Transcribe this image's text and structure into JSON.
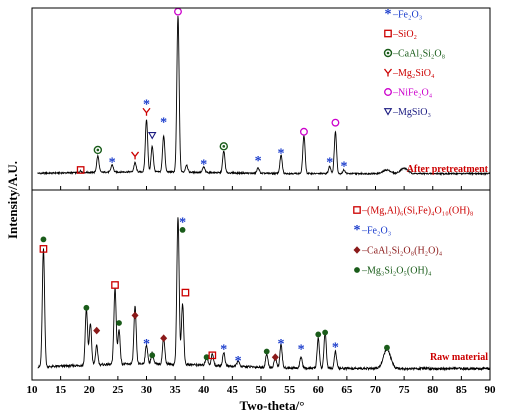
{
  "chart_data": {
    "type": "line",
    "xlabel": "Two-theta/°",
    "ylabel": "Intensity/A.U.",
    "xlim": [
      10,
      90
    ],
    "x_ticks": [
      10,
      15,
      20,
      25,
      30,
      35,
      40,
      45,
      50,
      55,
      60,
      65,
      70,
      75,
      80,
      85,
      90
    ],
    "grid": false,
    "series": [
      {
        "name": "After pretreatment",
        "color": "#000000",
        "label_color": "#cc0000",
        "baseline": 0.09,
        "noise": 0.008,
        "peaks": [
          {
            "x": 18.5,
            "h": 0.01
          },
          {
            "x": 21.5,
            "h": 0.09
          },
          {
            "x": 24.0,
            "h": 0.04
          },
          {
            "x": 28.0,
            "h": 0.05
          },
          {
            "x": 30.0,
            "h": 0.29
          },
          {
            "x": 31.0,
            "h": 0.14
          },
          {
            "x": 33.0,
            "h": 0.2
          },
          {
            "x": 35.5,
            "h": 0.86
          },
          {
            "x": 37.0,
            "h": 0.04
          },
          {
            "x": 40.0,
            "h": 0.03
          },
          {
            "x": 43.5,
            "h": 0.12
          },
          {
            "x": 49.5,
            "h": 0.03
          },
          {
            "x": 53.5,
            "h": 0.1
          },
          {
            "x": 57.5,
            "h": 0.21
          },
          {
            "x": 62.0,
            "h": 0.04
          },
          {
            "x": 63.0,
            "h": 0.23
          },
          {
            "x": 64.5,
            "h": 0.02
          },
          {
            "x": 72.0,
            "h": 0.02
          },
          {
            "x": 75.0,
            "h": 0.03
          }
        ],
        "markers": [
          {
            "x": 18.5,
            "sym": "square",
            "color": "#cc0000",
            "y": 0.11
          },
          {
            "x": 21.5,
            "sym": "flower",
            "color": "#1a5c1a",
            "y": 0.22
          },
          {
            "x": 24.0,
            "sym": "star",
            "color": "#1a3ccc",
            "y": 0.15
          },
          {
            "x": 28.0,
            "sym": "arrow",
            "color": "#cc0000",
            "y": 0.19
          },
          {
            "x": 30.0,
            "sym": "star",
            "color": "#1a3ccc",
            "y": 0.47
          },
          {
            "x": 30.0,
            "sym": "arrow",
            "color": "#cc0000",
            "y": 0.43
          },
          {
            "x": 31.0,
            "sym": "triangle",
            "color": "#1a1a80",
            "y": 0.3
          },
          {
            "x": 33.0,
            "sym": "star",
            "color": "#1a3ccc",
            "y": 0.37
          },
          {
            "x": 35.5,
            "sym": "circle",
            "color": "#cc00cc",
            "y": 0.98
          },
          {
            "x": 40.0,
            "sym": "star",
            "color": "#1a3ccc",
            "y": 0.14
          },
          {
            "x": 43.5,
            "sym": "flower",
            "color": "#1a5c1a",
            "y": 0.24
          },
          {
            "x": 49.5,
            "sym": "star",
            "color": "#1a3ccc",
            "y": 0.16
          },
          {
            "x": 53.5,
            "sym": "star",
            "color": "#1a3ccc",
            "y": 0.2
          },
          {
            "x": 57.5,
            "sym": "circle",
            "color": "#cc00cc",
            "y": 0.32
          },
          {
            "x": 62.0,
            "sym": "star",
            "color": "#1a3ccc",
            "y": 0.15
          },
          {
            "x": 63.0,
            "sym": "circle",
            "color": "#cc00cc",
            "y": 0.37
          },
          {
            "x": 64.5,
            "sym": "star",
            "color": "#1a3ccc",
            "y": 0.13
          }
        ],
        "legend": [
          {
            "sym": "star",
            "color": "#1a3ccc",
            "text": "–Fe₂O₃"
          },
          {
            "sym": "square",
            "color": "#cc0000",
            "text": "–SiO₂"
          },
          {
            "sym": "flower",
            "color": "#1a5c1a",
            "text": "–CaAl₂Si₂O₈"
          },
          {
            "sym": "arrow",
            "color": "#cc0000",
            "text": "–Mg₂SiO₄"
          },
          {
            "sym": "circle",
            "color": "#cc00cc",
            "text": "–NiFe₂O₄"
          },
          {
            "sym": "triangle",
            "color": "#1a1a80",
            "text": "–MgSiO₃"
          }
        ]
      },
      {
        "name": "Raw material",
        "color": "#000000",
        "label_color": "#cc0000",
        "baseline": 0.06,
        "noise": 0.012,
        "peaks": [
          {
            "x": 12.0,
            "h": 0.62
          },
          {
            "x": 19.5,
            "h": 0.3
          },
          {
            "x": 20.2,
            "h": 0.22
          },
          {
            "x": 21.3,
            "h": 0.1
          },
          {
            "x": 24.5,
            "h": 0.4
          },
          {
            "x": 25.2,
            "h": 0.18
          },
          {
            "x": 28.0,
            "h": 0.3
          },
          {
            "x": 30.0,
            "h": 0.1
          },
          {
            "x": 31.0,
            "h": 0.06
          },
          {
            "x": 33.0,
            "h": 0.14
          },
          {
            "x": 35.5,
            "h": 0.78
          },
          {
            "x": 36.3,
            "h": 0.32
          },
          {
            "x": 40.5,
            "h": 0.05
          },
          {
            "x": 41.5,
            "h": 0.06
          },
          {
            "x": 43.5,
            "h": 0.07
          },
          {
            "x": 46.0,
            "h": 0.03
          },
          {
            "x": 51.0,
            "h": 0.07
          },
          {
            "x": 52.5,
            "h": 0.06
          },
          {
            "x": 53.5,
            "h": 0.12
          },
          {
            "x": 57.0,
            "h": 0.06
          },
          {
            "x": 60.0,
            "h": 0.16
          },
          {
            "x": 61.2,
            "h": 0.19
          },
          {
            "x": 63.0,
            "h": 0.09
          },
          {
            "x": 72.0,
            "h": 0.1
          }
        ],
        "markers": [
          {
            "x": 12.0,
            "sym": "square",
            "color": "#cc0000",
            "y": 0.69
          },
          {
            "x": 12.0,
            "sym": "dot",
            "color": "#1a5c1a",
            "y": 0.74
          },
          {
            "x": 19.5,
            "sym": "dot",
            "color": "#1a5c1a",
            "y": 0.38
          },
          {
            "x": 21.3,
            "sym": "diamond",
            "color": "#8b1a1a",
            "y": 0.26
          },
          {
            "x": 24.5,
            "sym": "square",
            "color": "#cc0000",
            "y": 0.5
          },
          {
            "x": 25.2,
            "sym": "dot",
            "color": "#1a5c1a",
            "y": 0.3
          },
          {
            "x": 28.0,
            "sym": "diamond",
            "color": "#8b1a1a",
            "y": 0.34
          },
          {
            "x": 30.0,
            "sym": "star",
            "color": "#1a3ccc",
            "y": 0.19
          },
          {
            "x": 31.0,
            "sym": "dot",
            "color": "#1a5c1a",
            "y": 0.13
          },
          {
            "x": 33.0,
            "sym": "diamond",
            "color": "#8b1a1a",
            "y": 0.22
          },
          {
            "x": 36.3,
            "sym": "star",
            "color": "#1a3ccc",
            "y": 0.83
          },
          {
            "x": 36.3,
            "sym": "dot",
            "color": "#1a5c1a",
            "y": 0.79
          },
          {
            "x": 36.8,
            "sym": "square",
            "color": "#cc0000",
            "y": 0.46
          },
          {
            "x": 40.5,
            "sym": "dot",
            "color": "#1a5c1a",
            "y": 0.12
          },
          {
            "x": 41.5,
            "sym": "square",
            "color": "#cc0000",
            "y": 0.13
          },
          {
            "x": 43.5,
            "sym": "star",
            "color": "#1a3ccc",
            "y": 0.16
          },
          {
            "x": 46.0,
            "sym": "star",
            "color": "#1a3ccc",
            "y": 0.1
          },
          {
            "x": 51.0,
            "sym": "dot",
            "color": "#1a5c1a",
            "y": 0.15
          },
          {
            "x": 52.5,
            "sym": "diamond",
            "color": "#8b1a1a",
            "y": 0.12
          },
          {
            "x": 53.5,
            "sym": "star",
            "color": "#1a3ccc",
            "y": 0.19
          },
          {
            "x": 57.0,
            "sym": "star",
            "color": "#1a3ccc",
            "y": 0.16
          },
          {
            "x": 60.0,
            "sym": "dot",
            "color": "#1a5c1a",
            "y": 0.24
          },
          {
            "x": 61.2,
            "sym": "dot",
            "color": "#1a5c1a",
            "y": 0.25
          },
          {
            "x": 63.0,
            "sym": "star",
            "color": "#1a3ccc",
            "y": 0.17
          },
          {
            "x": 72.0,
            "sym": "dot",
            "color": "#1a5c1a",
            "y": 0.17
          }
        ],
        "legend": [
          {
            "sym": "square",
            "color": "#cc0000",
            "text": "–(Mg,Al)₆(Si,Fe)₄O₁₀(OH)₈"
          },
          {
            "sym": "star",
            "color": "#1a3ccc",
            "text": "–Fe₂O₃"
          },
          {
            "sym": "diamond",
            "color": "#8b1a1a",
            "text": "–CaAl₂Si₂O₈(H₂O)₄"
          },
          {
            "sym": "dot",
            "color": "#1a5c1a",
            "text": "–Mg₃Si₂O₅(OH)₄"
          }
        ]
      }
    ]
  }
}
